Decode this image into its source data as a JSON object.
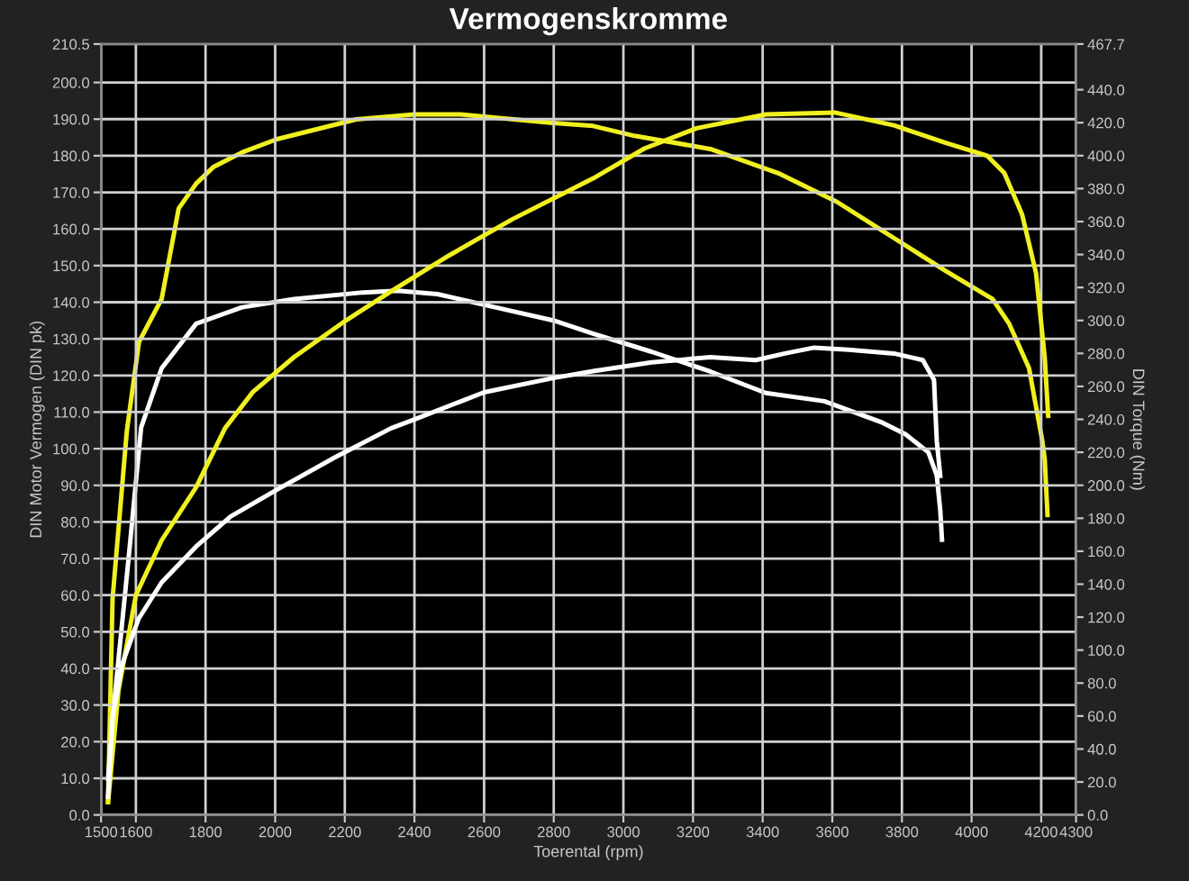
{
  "chart_data": {
    "type": "line",
    "title": "Vermogenskromme",
    "xlabel": "Toerental (rpm)",
    "ylabel": "DIN Motor Vermogen (DIN pk)",
    "y2label": "DIN Torque (Nm)",
    "xlim": [
      1500,
      4300
    ],
    "xticks": [
      1500,
      1600,
      1800,
      2000,
      2200,
      2400,
      2600,
      2800,
      3000,
      3200,
      3400,
      3600,
      3800,
      4000,
      4200,
      4300
    ],
    "ylim": [
      0,
      210.5
    ],
    "yticks": [
      {
        "value": 0,
        "label": "0.0"
      },
      {
        "value": 10,
        "label": "10.0"
      },
      {
        "value": 20,
        "label": "20.0"
      },
      {
        "value": 30,
        "label": "30.0"
      },
      {
        "value": 40,
        "label": "40.0"
      },
      {
        "value": 50,
        "label": "50.0"
      },
      {
        "value": 60,
        "label": "60.0"
      },
      {
        "value": 70,
        "label": "70.0"
      },
      {
        "value": 80,
        "label": "80.0"
      },
      {
        "value": 90,
        "label": "90.0"
      },
      {
        "value": 100,
        "label": "100.0"
      },
      {
        "value": 110,
        "label": "110.0"
      },
      {
        "value": 120,
        "label": "120.0"
      },
      {
        "value": 130,
        "label": "130.0"
      },
      {
        "value": 140,
        "label": "140.0"
      },
      {
        "value": 150,
        "label": "150.0"
      },
      {
        "value": 160,
        "label": "160.0"
      },
      {
        "value": 170,
        "label": "170.0"
      },
      {
        "value": 180,
        "label": "180.0"
      },
      {
        "value": 190,
        "label": "190.0"
      },
      {
        "value": 200,
        "label": "200.0"
      },
      210.5
    ],
    "y2lim": [
      0,
      467.7
    ],
    "y2ticks": [
      {
        "value": 0,
        "label": "0.0"
      },
      {
        "value": 20,
        "label": "20.0"
      },
      {
        "value": 40,
        "label": "40.0"
      },
      {
        "value": 60,
        "label": "60.0"
      },
      {
        "value": 80,
        "label": "80.0"
      },
      {
        "value": 100,
        "label": "100.0"
      },
      {
        "value": 120,
        "label": "120.0"
      },
      {
        "value": 140,
        "label": "140.0"
      },
      {
        "value": 160,
        "label": "160.0"
      },
      {
        "value": 180,
        "label": "180.0"
      },
      {
        "value": 200,
        "label": "200.0"
      },
      {
        "value": 220,
        "label": "220.0"
      },
      {
        "value": 240,
        "label": "240.0"
      },
      {
        "value": 260,
        "label": "260.0"
      },
      {
        "value": 280,
        "label": "280.0"
      },
      {
        "value": 300,
        "label": "300.0"
      },
      {
        "value": 320,
        "label": "320.0"
      },
      {
        "value": 340,
        "label": "340.0"
      },
      {
        "value": 360,
        "label": "360.0"
      },
      {
        "value": 380,
        "label": "380.0"
      },
      {
        "value": 400,
        "label": "400.0"
      },
      {
        "value": 420,
        "label": "420.0"
      },
      {
        "value": 440,
        "label": "440.0"
      },
      467.7
    ],
    "grid": true,
    "marker": "none",
    "line_style": "solid",
    "series": [
      {
        "color": "#f0f020",
        "axis": "y2",
        "x": [
          1520,
          1533,
          1574,
          1609,
          1674,
          1723,
          1773,
          1822,
          1905,
          2005,
          2233,
          2400,
          2532,
          2790,
          2913,
          3032,
          3250,
          3449,
          3613,
          3777,
          3926,
          4060,
          4108,
          4165,
          4203,
          4210,
          4218
        ],
        "values": [
          8,
          131,
          233,
          287,
          313,
          368,
          383,
          393,
          402,
          410,
          422,
          425,
          425,
          420,
          418,
          412,
          404,
          389,
          372,
          350,
          330,
          313,
          298,
          271,
          227,
          216,
          182
        ]
      },
      {
        "color": "#f0f020",
        "x": [
          1520,
          1525,
          1550,
          1600,
          1674,
          1773,
          1856,
          1936,
          2054,
          2203,
          2333,
          2500,
          2680,
          2913,
          3061,
          3210,
          3409,
          3607,
          3777,
          3926,
          4045,
          4094,
          4145,
          4185,
          4210,
          4220
        ],
        "values": [
          3.5,
          8.4,
          34,
          60,
          75,
          89.5,
          105.6,
          115.5,
          125,
          135,
          143,
          152.8,
          162.6,
          173.8,
          182,
          187.5,
          191.3,
          191.8,
          188.3,
          183.5,
          180,
          175.3,
          164,
          148,
          125,
          109
        ]
      },
      {
        "color": "#ffffff",
        "axis": "y2",
        "x": [
          1520,
          1540,
          1582,
          1615,
          1674,
          1773,
          1905,
          2054,
          2252,
          2352,
          2466,
          2632,
          2799,
          2913,
          3081,
          3250,
          3409,
          3577,
          3744,
          3810,
          3876,
          3900,
          3910,
          3915
        ],
        "values": [
          22,
          73,
          162,
          235,
          271,
          298,
          308,
          313,
          317,
          318,
          316,
          308,
          300,
          292,
          281,
          269,
          256,
          251,
          238,
          231,
          220,
          206,
          185,
          167
        ]
      },
      {
        "color": "#ffffff",
        "x": [
          1520,
          1533,
          1560,
          1608,
          1674,
          1773,
          1872,
          2005,
          2169,
          2333,
          2400,
          2600,
          2799,
          2913,
          3081,
          3250,
          3380,
          3464,
          3548,
          3647,
          3777,
          3860,
          3892,
          3900,
          3910
        ],
        "values": [
          5,
          26.5,
          41,
          53.6,
          63.5,
          73.3,
          81.5,
          88.8,
          97.5,
          105.6,
          108,
          115.4,
          119.3,
          121.2,
          123.6,
          125,
          124.2,
          126,
          127.6,
          127,
          126,
          124.2,
          118.8,
          102.2,
          92.6
        ]
      }
    ]
  }
}
